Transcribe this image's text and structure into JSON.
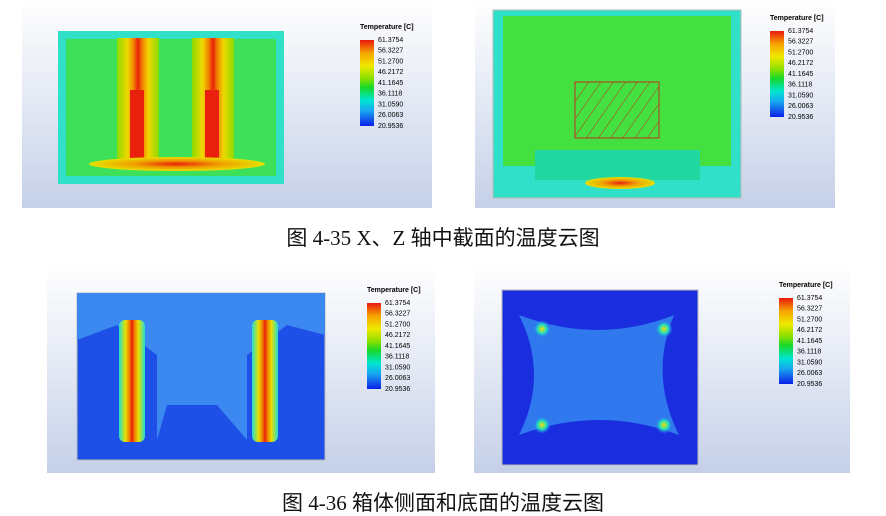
{
  "figures": [
    {
      "panels": [
        {
          "legend": {
            "title": "Temperature [C]",
            "labels": [
              "61.3754",
              "56.3227",
              "51.2700",
              "46.2172",
              "41.1645",
              "36.1118",
              "31.0590",
              "26.0063",
              "20.9536"
            ]
          }
        },
        {
          "legend": {
            "title": "Temperature [C]",
            "labels": [
              "61.3754",
              "56.3227",
              "51.2700",
              "46.2172",
              "41.1645",
              "36.1118",
              "31.0590",
              "26.0063",
              "20.9536"
            ]
          }
        }
      ],
      "caption": "图 4-35 X、Z 轴中截面的温度云图"
    },
    {
      "panels": [
        {
          "legend": {
            "title": "Temperature [C]",
            "labels": [
              "61.3754",
              "56.3227",
              "51.2700",
              "46.2172",
              "41.1645",
              "36.1118",
              "31.0590",
              "26.0063",
              "20.9536"
            ]
          }
        },
        {
          "legend": {
            "title": "Temperature [C]",
            "labels": [
              "61.3754",
              "56.3227",
              "51.2700",
              "46.2172",
              "41.1645",
              "36.1118",
              "31.0590",
              "26.0063",
              "20.9536"
            ]
          }
        }
      ],
      "caption": "图 4-36 箱体侧面和底面的温度云图"
    }
  ]
}
